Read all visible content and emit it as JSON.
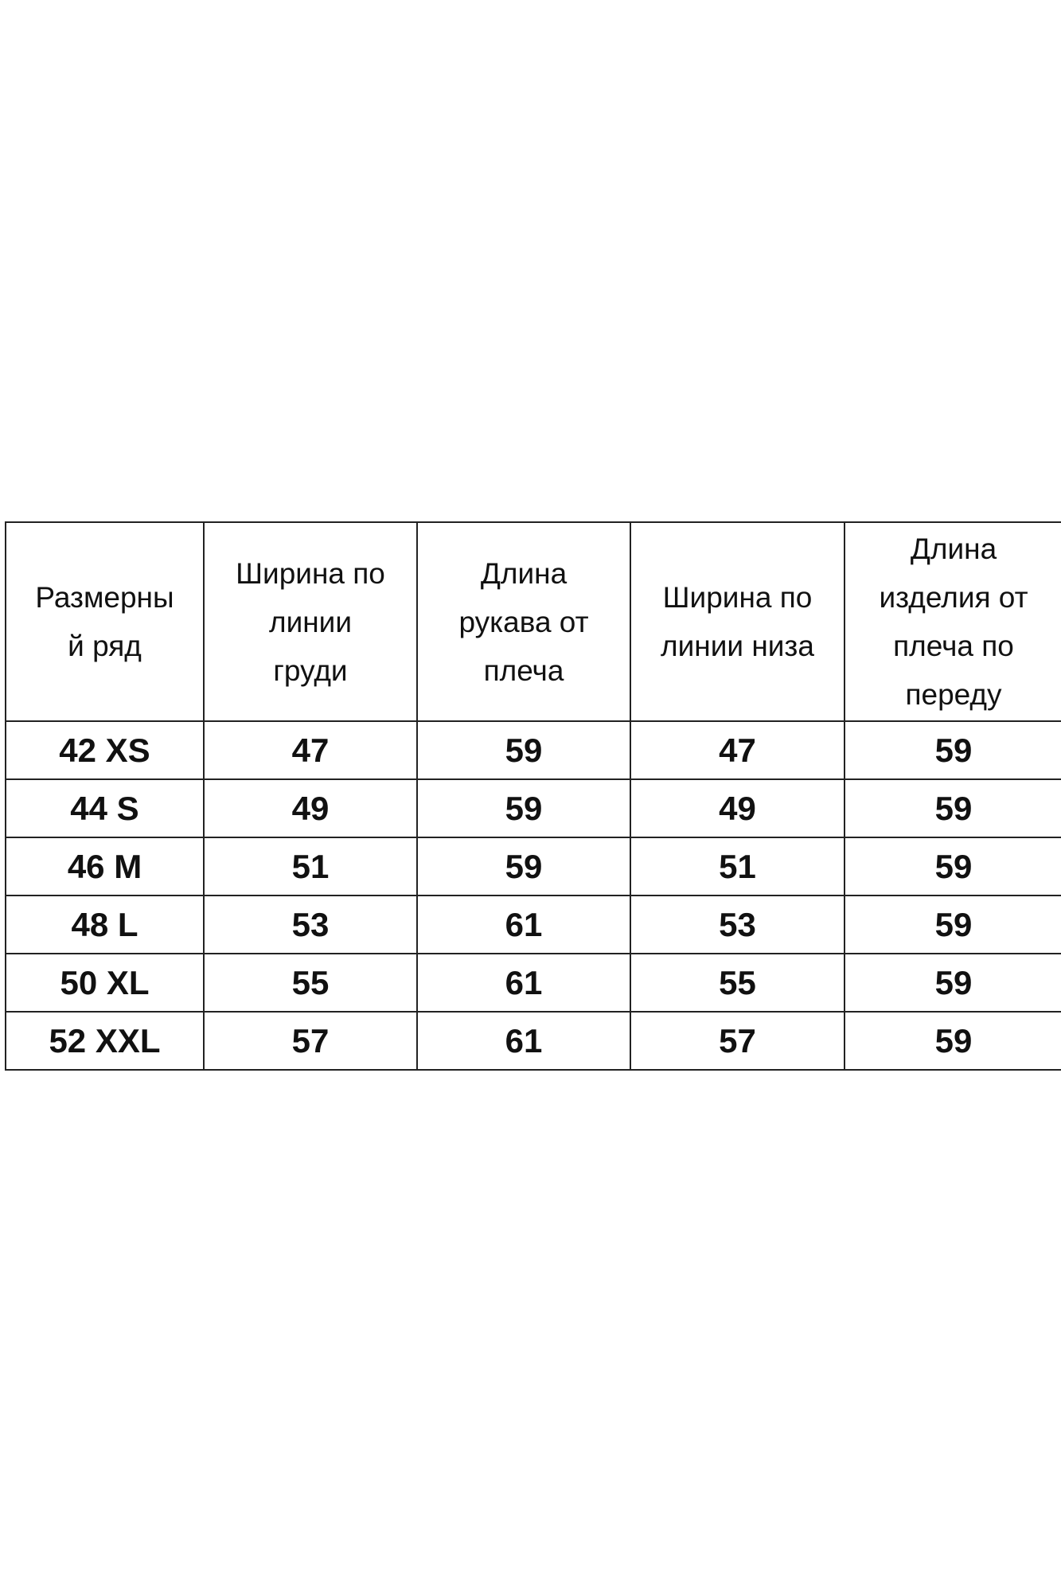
{
  "table": {
    "headers": [
      [
        "Размерны",
        "й ряд"
      ],
      [
        "Ширина по",
        "линии",
        "груди"
      ],
      [
        "Длина",
        "рукава от",
        "плеча"
      ],
      [
        "Ширина по",
        "линии низа"
      ],
      [
        "Длина",
        "изделия от",
        "плеча по",
        "переду"
      ]
    ],
    "rows": [
      [
        "42 XS",
        "47",
        "59",
        "47",
        "59"
      ],
      [
        "44 S",
        "49",
        "59",
        "49",
        "59"
      ],
      [
        "46 M",
        "51",
        "59",
        "51",
        "59"
      ],
      [
        "48 L",
        "53",
        "61",
        "53",
        "59"
      ],
      [
        "50 XL",
        "55",
        "61",
        "55",
        "59"
      ],
      [
        "52 XXL",
        "57",
        "61",
        "57",
        "59"
      ]
    ]
  }
}
